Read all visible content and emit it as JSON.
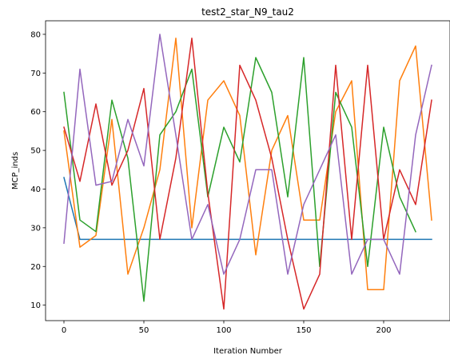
{
  "chart_data": {
    "type": "line",
    "title": "test2_star_N9_tau2",
    "xlabel": "Iteration Number",
    "ylabel": "MCP_inds",
    "xlim": [
      -11.5,
      241.5
    ],
    "ylim": [
      6.0,
      83.5
    ],
    "xticks": [
      0,
      50,
      100,
      150,
      200
    ],
    "yticks": [
      10,
      20,
      30,
      40,
      50,
      60,
      70,
      80
    ],
    "grid": false,
    "legend": null,
    "series": [
      {
        "color": "#1f77b4",
        "x": [
          0,
          10,
          20,
          30,
          40,
          50,
          60,
          70,
          80,
          90,
          100,
          110,
          120,
          130,
          140,
          150,
          160,
          170,
          180,
          190,
          200,
          210,
          220,
          230
        ],
        "y": [
          43,
          27,
          27,
          27,
          27,
          27,
          27,
          27,
          27,
          27,
          27,
          27,
          27,
          27,
          27,
          27,
          27,
          27,
          27,
          27,
          27,
          27,
          27,
          27
        ]
      },
      {
        "color": "#ff7f0e",
        "x": [
          0,
          10,
          20,
          30,
          40,
          50,
          60,
          70,
          80,
          90,
          100,
          110,
          120,
          130,
          140,
          150,
          160,
          170,
          180,
          190,
          200,
          210,
          220,
          230
        ],
        "y": [
          55,
          25,
          28,
          58,
          18,
          30,
          45,
          79,
          30,
          63,
          68,
          59,
          23,
          50,
          59,
          32,
          32,
          60,
          68,
          14,
          14,
          68,
          77,
          32
        ]
      },
      {
        "color": "#2ca02c",
        "x": [
          0,
          10,
          20,
          30,
          40,
          50,
          60,
          70,
          80,
          90,
          100,
          110,
          120,
          130,
          140,
          150,
          160,
          170,
          180,
          190,
          200,
          210,
          220
        ],
        "y": [
          65,
          32,
          29,
          63,
          48,
          11,
          54,
          60,
          71,
          38,
          56,
          47,
          74,
          65,
          38,
          74,
          20,
          65,
          56,
          20,
          56,
          38,
          29
        ]
      },
      {
        "color": "#d62728",
        "x": [
          0,
          10,
          20,
          30,
          40,
          50,
          60,
          70,
          80,
          90,
          100,
          110,
          120,
          130,
          140,
          150,
          160,
          170,
          180,
          190,
          200,
          210,
          220,
          230
        ],
        "y": [
          56,
          42,
          62,
          41,
          50,
          66,
          27,
          48,
          79,
          39,
          9,
          72,
          63,
          48,
          27,
          9,
          18,
          72,
          27,
          72,
          27,
          45,
          36,
          63
        ]
      },
      {
        "color": "#9467bd",
        "x": [
          0,
          10,
          20,
          30,
          40,
          50,
          60,
          70,
          80,
          90,
          100,
          110,
          120,
          130,
          140,
          150,
          160,
          170,
          180,
          190,
          200,
          210,
          220,
          230
        ],
        "y": [
          26,
          71,
          41,
          42,
          58,
          46,
          80,
          54,
          27,
          36,
          18,
          27,
          45,
          45,
          18,
          36,
          45,
          54,
          18,
          27,
          27,
          18,
          54,
          72
        ]
      }
    ]
  }
}
